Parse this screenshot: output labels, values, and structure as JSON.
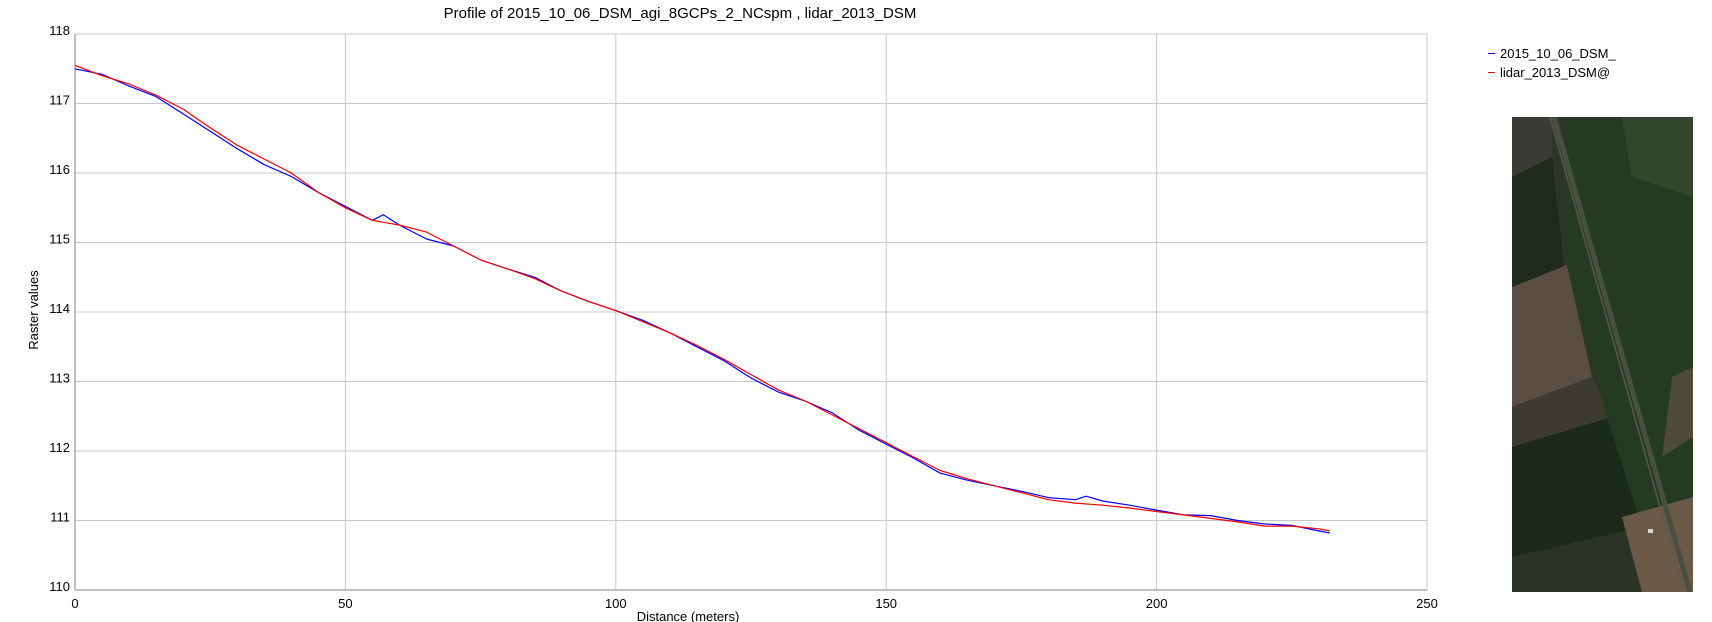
{
  "chart_data": {
    "type": "line",
    "title": "Profile of 2015_10_06_DSM_agi_8GCPs_2_NCspm , lidar_2013_DSM",
    "xlabel": "Distance (meters)",
    "ylabel": "Raster values",
    "xlim": [
      0,
      250
    ],
    "ylim": [
      110,
      118
    ],
    "xticks": [
      "0",
      "50",
      "100",
      "150",
      "200",
      "250"
    ],
    "yticks": [
      "110",
      "111",
      "112",
      "113",
      "114",
      "115",
      "116",
      "117",
      "118"
    ],
    "grid": true,
    "legend_position": "top-right",
    "series": [
      {
        "name": "2015_10_06_DSM_",
        "color": "#0000ff",
        "x": [
          0,
          5,
          10,
          15,
          20,
          25,
          30,
          35,
          40,
          45,
          50,
          55,
          57,
          60,
          65,
          70,
          75,
          80,
          85,
          90,
          95,
          100,
          105,
          110,
          115,
          120,
          125,
          130,
          135,
          140,
          145,
          150,
          155,
          160,
          165,
          170,
          175,
          180,
          185,
          187,
          190,
          195,
          200,
          205,
          210,
          215,
          220,
          225,
          230,
          232
        ],
        "y": [
          117.5,
          117.42,
          117.25,
          117.1,
          116.85,
          116.6,
          116.35,
          116.12,
          115.95,
          115.72,
          115.52,
          115.32,
          115.4,
          115.25,
          115.05,
          114.95,
          114.75,
          114.62,
          114.5,
          114.3,
          114.15,
          114.02,
          113.88,
          113.7,
          113.5,
          113.3,
          113.05,
          112.85,
          112.72,
          112.55,
          112.3,
          112.1,
          111.9,
          111.68,
          111.58,
          111.5,
          111.42,
          111.33,
          111.3,
          111.35,
          111.28,
          111.22,
          111.15,
          111.08,
          111.07,
          111.0,
          110.95,
          110.93,
          110.85,
          110.82
        ]
      },
      {
        "name": "lidar_2013_DSM@",
        "color": "#ff0000",
        "x": [
          0,
          5,
          10,
          15,
          20,
          25,
          30,
          35,
          40,
          45,
          50,
          55,
          60,
          65,
          70,
          75,
          80,
          85,
          90,
          95,
          100,
          105,
          110,
          115,
          120,
          125,
          130,
          135,
          140,
          145,
          150,
          155,
          160,
          165,
          170,
          175,
          180,
          185,
          190,
          195,
          200,
          205,
          210,
          215,
          220,
          225,
          230,
          232
        ],
        "y": [
          117.55,
          117.4,
          117.28,
          117.12,
          116.92,
          116.65,
          116.4,
          116.2,
          116.0,
          115.72,
          115.5,
          115.32,
          115.25,
          115.15,
          114.95,
          114.75,
          114.62,
          114.48,
          114.3,
          114.15,
          114.02,
          113.86,
          113.7,
          113.52,
          113.32,
          113.1,
          112.88,
          112.72,
          112.52,
          112.32,
          112.12,
          111.92,
          111.72,
          111.6,
          111.5,
          111.4,
          111.3,
          111.25,
          111.22,
          111.18,
          111.13,
          111.08,
          111.03,
          110.98,
          110.92,
          110.92,
          110.88,
          110.85
        ]
      }
    ]
  },
  "legend": {
    "items": [
      {
        "label": "2015_10_06_DSM_",
        "color": "#0000ff"
      },
      {
        "label": "lidar_2013_DSM@",
        "color": "#ff0000"
      }
    ]
  },
  "colors": {
    "grid": "#c8c8c8",
    "axis": "#808080"
  }
}
